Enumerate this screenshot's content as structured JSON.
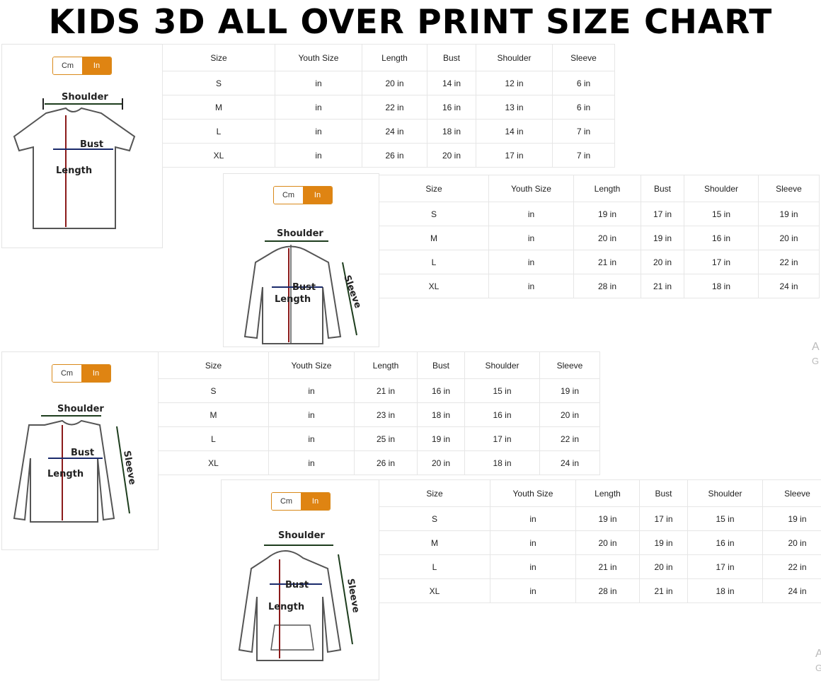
{
  "title": "KIDS 3D ALL OVER PRINT SIZE CHART",
  "colors": {
    "toggle_active": "#df8412",
    "length_arrow": "#8b1a1a",
    "bust_arrow": "#1a2a6b",
    "shoulder_arrow": "#1d3d1d"
  },
  "toggle": {
    "cm": "Cm",
    "in": "In"
  },
  "panels": [
    {
      "garment": "t-shirt",
      "labels": {
        "shoulder": "Shoulder",
        "bust": "Bust",
        "length": "Length"
      },
      "headers": [
        "Size",
        "Youth Size",
        "Length",
        "Bust",
        "Shoulder",
        "Sleeve"
      ],
      "rows": [
        [
          "S",
          "in",
          "20 in",
          "14 in",
          "12 in",
          "6 in"
        ],
        [
          "M",
          "in",
          "22 in",
          "16 in",
          "13 in",
          "6 in"
        ],
        [
          "L",
          "in",
          "24 in",
          "18 in",
          "14 in",
          "7 in"
        ],
        [
          "XL",
          "in",
          "26 in",
          "20 in",
          "17 in",
          "7 in"
        ]
      ]
    },
    {
      "garment": "zip-hoodie",
      "labels": {
        "shoulder": "Shoulder",
        "bust": "Bust",
        "length": "Length",
        "sleeve": "Sleeve"
      },
      "headers": [
        "Size",
        "Youth Size",
        "Length",
        "Bust",
        "Shoulder",
        "Sleeve"
      ],
      "rows": [
        [
          "S",
          "in",
          "19 in",
          "17 in",
          "15 in",
          "19 in"
        ],
        [
          "M",
          "in",
          "20 in",
          "19 in",
          "16 in",
          "20 in"
        ],
        [
          "L",
          "in",
          "21 in",
          "20 in",
          "17 in",
          "22 in"
        ],
        [
          "XL",
          "in",
          "28 in",
          "21 in",
          "18 in",
          "24 in"
        ]
      ]
    },
    {
      "garment": "long-sleeve-shirt",
      "labels": {
        "shoulder": "Shoulder",
        "bust": "Bust",
        "length": "Length",
        "sleeve": "Sleeve"
      },
      "headers": [
        "Size",
        "Youth Size",
        "Length",
        "Bust",
        "Shoulder",
        "Sleeve"
      ],
      "rows": [
        [
          "S",
          "in",
          "21 in",
          "16 in",
          "15 in",
          "19 in"
        ],
        [
          "M",
          "in",
          "23 in",
          "18 in",
          "16 in",
          "20 in"
        ],
        [
          "L",
          "in",
          "25 in",
          "19 in",
          "17 in",
          "22 in"
        ],
        [
          "XL",
          "in",
          "26 in",
          "20 in",
          "18 in",
          "24 in"
        ]
      ]
    },
    {
      "garment": "pullover-hoodie",
      "labels": {
        "shoulder": "Shoulder",
        "bust": "Bust",
        "length": "Length",
        "sleeve": "Sleeve"
      },
      "headers": [
        "Size",
        "Youth Size",
        "Length",
        "Bust",
        "Shoulder",
        "Sleeve"
      ],
      "rows": [
        [
          "S",
          "in",
          "19 in",
          "17 in",
          "15 in",
          "19 in"
        ],
        [
          "M",
          "in",
          "20 in",
          "19 in",
          "16 in",
          "20 in"
        ],
        [
          "L",
          "in",
          "21 in",
          "20 in",
          "17 in",
          "22 in"
        ],
        [
          "XL",
          "in",
          "28 in",
          "21 in",
          "18 in",
          "24 in"
        ]
      ]
    }
  ],
  "edge_text": [
    {
      "line1": "A",
      "line2": "G"
    },
    {
      "line1": "A",
      "line2": "G"
    }
  ]
}
